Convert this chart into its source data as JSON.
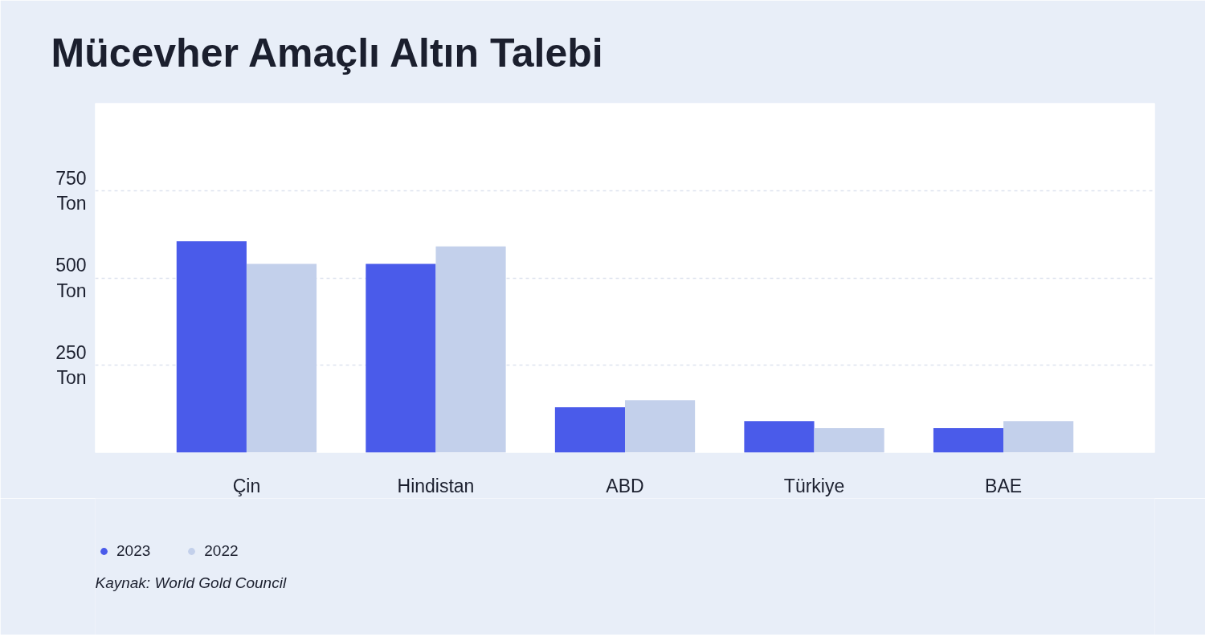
{
  "chart_data": {
    "type": "bar",
    "title": "Mücevher Amaçlı Altın Talebi",
    "categories": [
      "Çin",
      "Hindistan",
      "ABD",
      "Türkiye",
      "BAE"
    ],
    "series": [
      {
        "name": "2023",
        "color": "#4a5bea",
        "values": [
          605,
          540,
          130,
          90,
          70
        ]
      },
      {
        "name": "2022",
        "color": "#c3d0eb",
        "values": [
          540,
          590,
          150,
          70,
          90
        ]
      }
    ],
    "ylim": [
      0,
      1000
    ],
    "yticks": [
      {
        "value": 250,
        "label": "250 Ton"
      },
      {
        "value": 500,
        "label": "500 Ton"
      },
      {
        "value": 750,
        "label": "750 Ton"
      }
    ],
    "grid": "y",
    "legend": "bottom left",
    "annotations": [
      "Kaynak: World Gold Council"
    ]
  }
}
